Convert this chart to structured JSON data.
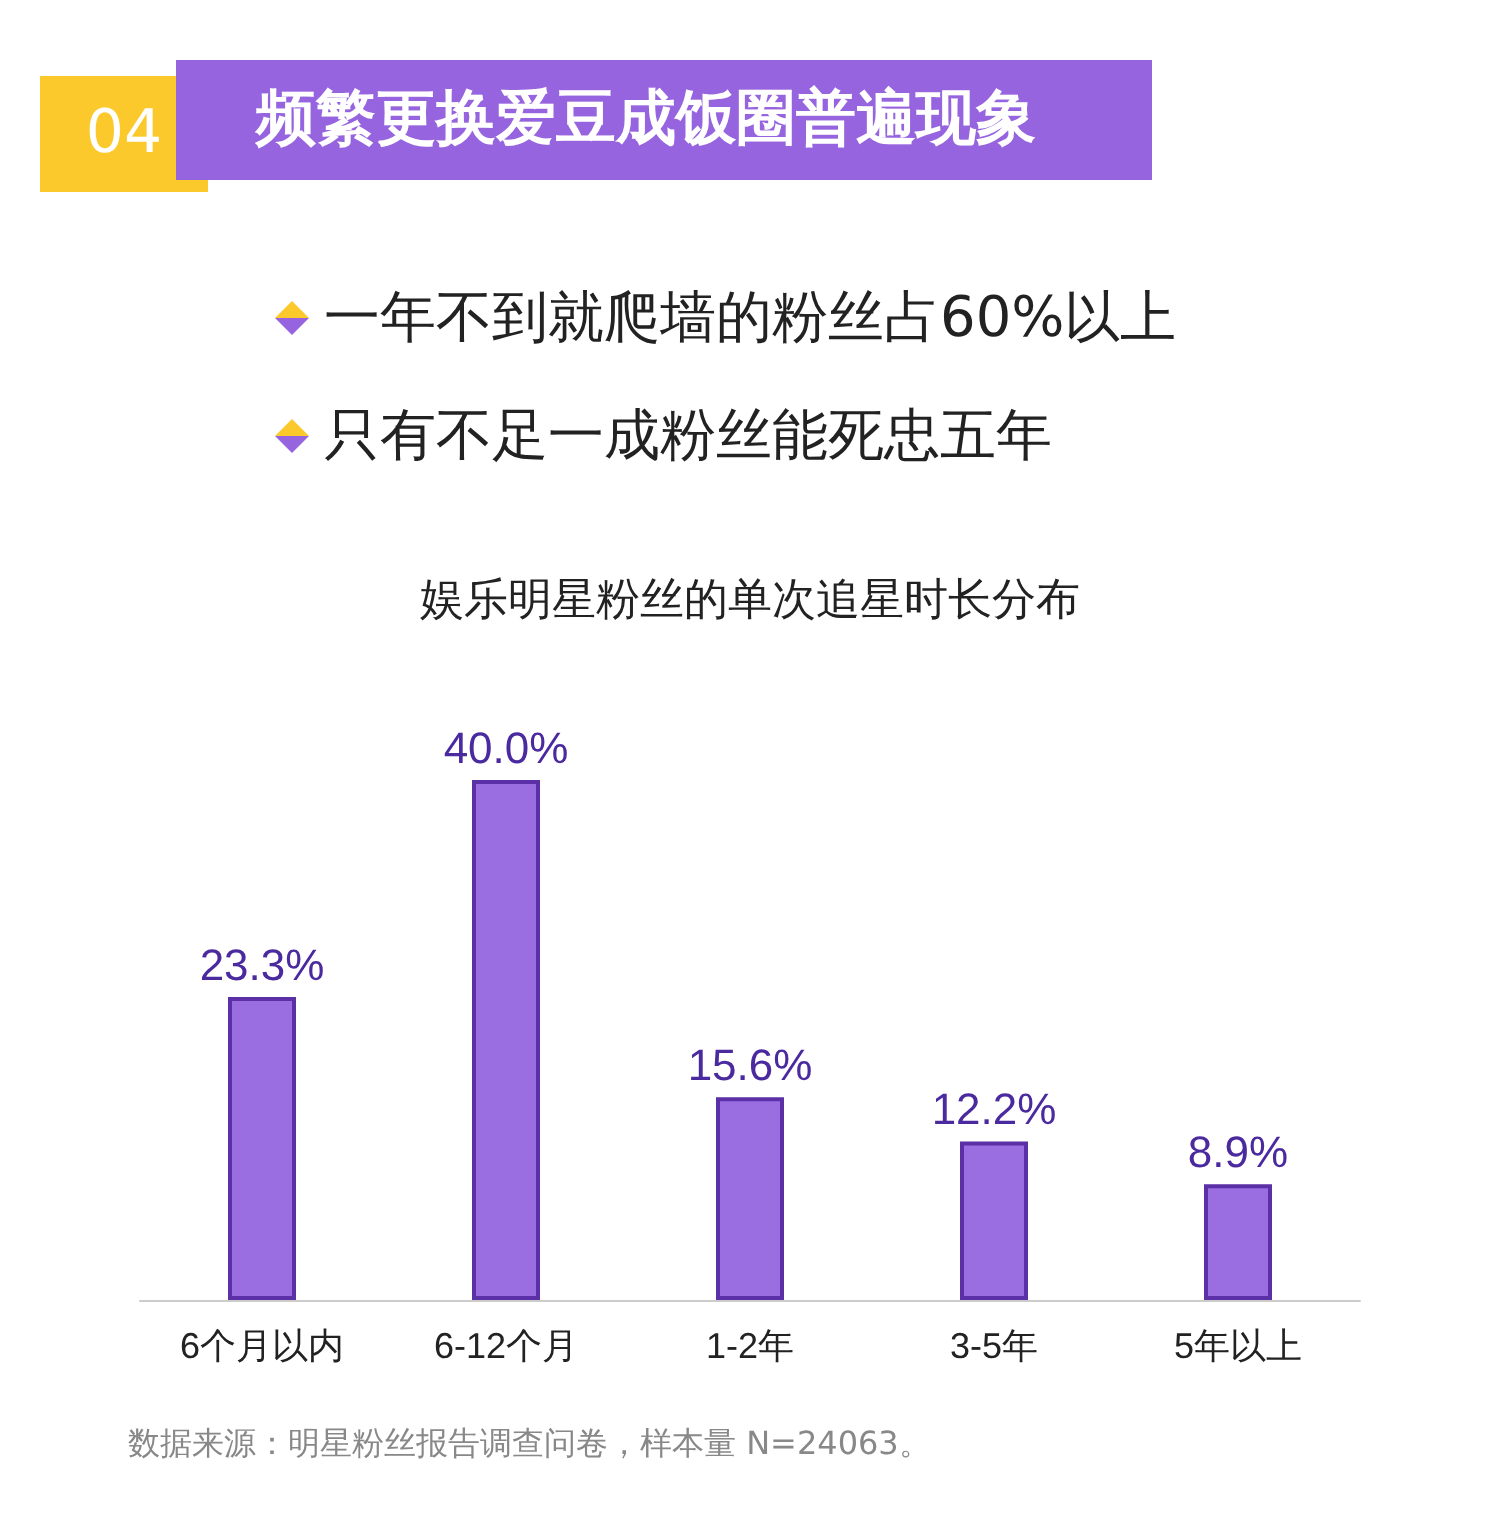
{
  "chart_data": {
    "type": "bar",
    "title": "频繁更换爱豆成饭圈普遍现象",
    "subtitle": "娱乐明星粉丝的单次追星时长分布",
    "annotations": [
      "04",
      "一年不到就爬墙的粉丝占60%以上",
      "只有不足一成粉丝能死忠五年",
      "数据来源：明星粉丝报告调查问卷，样本量 N=24063。"
    ],
    "categories": [
      "6个月以内",
      "6-12个月",
      "1-2年",
      "3-5年",
      "5年以上"
    ],
    "values": [
      23.3,
      40.0,
      15.6,
      12.2,
      8.9
    ],
    "value_labels": [
      "23.3%",
      "40.0%",
      "15.6%",
      "12.2%",
      "8.9%"
    ],
    "color": "#9a6ee0"
  }
}
